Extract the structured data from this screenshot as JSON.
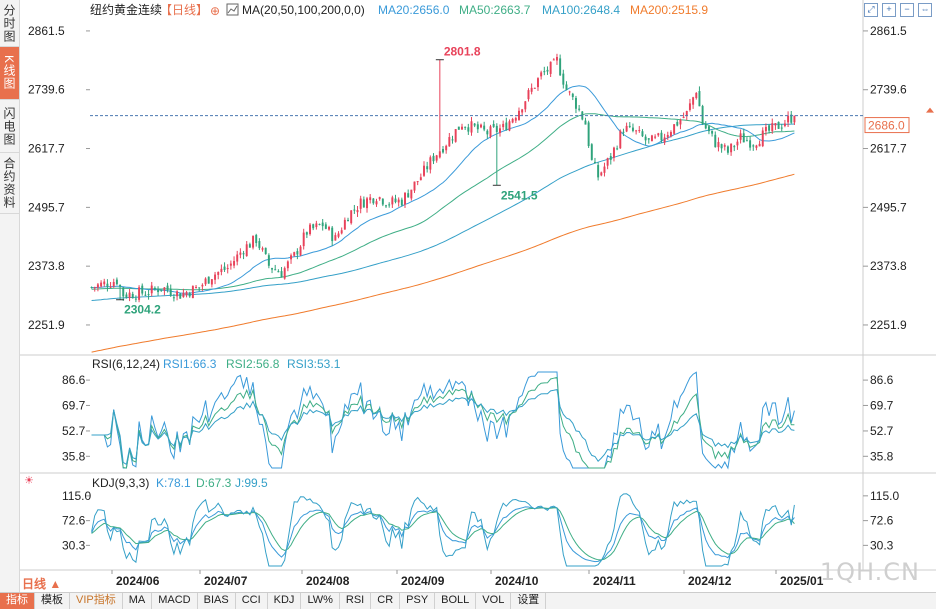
{
  "sidebar": {
    "tabs": [
      {
        "label": "分时图",
        "active": false
      },
      {
        "label": "K线图",
        "active": true
      },
      {
        "label": "闪电图",
        "active": false
      },
      {
        "label": "合约资料",
        "active": false
      }
    ]
  },
  "header": {
    "symbol": "纽约黄金连续",
    "period_tag": "【日线】",
    "ma_label": "MA(20,50,100,200,0,0)",
    "ma20": "MA20:2656.0",
    "ma50": "MA50:2663.7",
    "ma100": "MA100:2648.4",
    "ma200": "MA200:2515.9"
  },
  "rsi_header": {
    "label": "RSI(6,12,24)",
    "rsi1": "RSI1:66.3",
    "rsi2": "RSI2:56.8",
    "rsi3": "RSI3:53.1"
  },
  "kdj_header": {
    "label": "KDJ(9,3,3)",
    "k": "K:78.1",
    "d": "D:67.3",
    "j": "J:99.5"
  },
  "bottom_tabs": [
    "指标",
    "模板",
    "VIP指标",
    "MA",
    "MACD",
    "BIAS",
    "CCI",
    "KDJ",
    "LW%",
    "RSI",
    "CR",
    "PSY",
    "BOLL",
    "VOL",
    "设置"
  ],
  "period_label": "日线 ▲",
  "watermark": "1QH.CN",
  "colors": {
    "up": "#e8425a",
    "down": "#2fa37b",
    "ma20": "#3a9ad9",
    "ma50": "#3fae86",
    "ma100": "#35a0c8",
    "ma200": "#f07b2c",
    "accent": "#e8704d"
  },
  "chart_data": [
    {
      "type": "candlestick",
      "y_ticks": [
        2861.5,
        2739.6,
        2617.7,
        2495.7,
        2373.8,
        2251.9
      ],
      "ylim": [
        2200,
        2880
      ],
      "x_labels": [
        "2024/06",
        "2024/07",
        "2024/08",
        "2024/09",
        "2024/10",
        "2024/11",
        "2024/12",
        "2025/01"
      ],
      "last_price": 2686.0,
      "annotations": [
        {
          "label": "2801.8",
          "date_index": 110,
          "value": 2801.8,
          "kind": "high"
        },
        {
          "label": "2541.5",
          "date_index": 128,
          "value": 2541.5,
          "kind": "low"
        },
        {
          "label": "2304.2",
          "date_index": 9,
          "value": 2304.2,
          "kind": "low"
        }
      ],
      "close_path": [
        [
          0,
          2330
        ],
        [
          8,
          2345
        ],
        [
          10,
          2315
        ],
        [
          18,
          2320
        ],
        [
          22,
          2330
        ],
        [
          28,
          2315
        ],
        [
          34,
          2330
        ],
        [
          38,
          2355
        ],
        [
          43,
          2370
        ],
        [
          48,
          2410
        ],
        [
          52,
          2430
        ],
        [
          56,
          2375
        ],
        [
          60,
          2360
        ],
        [
          64,
          2395
        ],
        [
          68,
          2445
        ],
        [
          73,
          2460
        ],
        [
          77,
          2430
        ],
        [
          81,
          2480
        ],
        [
          85,
          2505
        ],
        [
          90,
          2520
        ],
        [
          94,
          2505
        ],
        [
          98,
          2510
        ],
        [
          104,
          2560
        ],
        [
          108,
          2600
        ],
        [
          112,
          2630
        ],
        [
          117,
          2670
        ],
        [
          121,
          2660
        ],
        [
          125,
          2650
        ],
        [
          130,
          2660
        ],
        [
          134,
          2690
        ],
        [
          138,
          2730
        ],
        [
          142,
          2770
        ],
        [
          146,
          2790
        ],
        [
          147,
          2800
        ],
        [
          150,
          2740
        ],
        [
          153,
          2710
        ],
        [
          156,
          2670
        ],
        [
          158,
          2590
        ],
        [
          160,
          2560
        ],
        [
          164,
          2600
        ],
        [
          168,
          2660
        ],
        [
          172,
          2650
        ],
        [
          176,
          2630
        ],
        [
          180,
          2640
        ],
        [
          184,
          2665
        ],
        [
          188,
          2690
        ],
        [
          191,
          2740
        ],
        [
          193,
          2670
        ],
        [
          197,
          2630
        ],
        [
          201,
          2610
        ],
        [
          205,
          2640
        ],
        [
          209,
          2630
        ],
        [
          213,
          2650
        ],
        [
          217,
          2665
        ],
        [
          222,
          2686
        ]
      ],
      "ma": [
        {
          "name": "MA20",
          "value": 2656.0
        },
        {
          "name": "MA50",
          "value": 2663.7
        },
        {
          "name": "MA100",
          "value": 2648.4
        },
        {
          "name": "MA200",
          "value": 2515.9
        }
      ]
    },
    {
      "type": "line",
      "y_ticks": [
        86.6,
        69.7,
        52.7,
        35.8
      ],
      "ylim": [
        28,
        92
      ],
      "series": [
        {
          "name": "RSI1",
          "last": 66.3
        },
        {
          "name": "RSI2",
          "last": 56.8
        },
        {
          "name": "RSI3",
          "last": 53.1
        }
      ]
    },
    {
      "type": "line",
      "y_ticks": [
        115.0,
        72.6,
        30.3
      ],
      "ylim": [
        -5,
        125
      ],
      "series": [
        {
          "name": "K",
          "last": 78.1
        },
        {
          "name": "D",
          "last": 67.3
        },
        {
          "name": "J",
          "last": 99.5
        }
      ]
    }
  ]
}
